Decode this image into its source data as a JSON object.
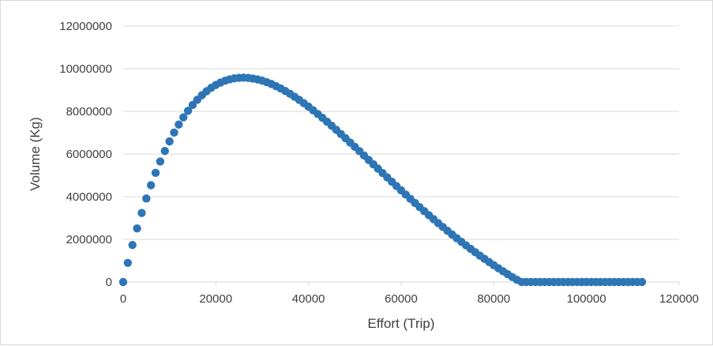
{
  "chart_data": {
    "type": "scatter",
    "title": "",
    "xlabel": "Effort (Trip)",
    "ylabel": "Volume (Kg)",
    "xlim": [
      0,
      120000
    ],
    "ylim": [
      0,
      12000000
    ],
    "x_ticks": [
      "0",
      "20000",
      "40000",
      "60000",
      "80000",
      "100000",
      "120000"
    ],
    "y_ticks": [
      "0",
      "2000000",
      "4000000",
      "6000000",
      "8000000",
      "10000000",
      "12000000"
    ],
    "grid": "horizontal",
    "legend": "none",
    "marker_color": "#2e75b6",
    "gridline_color": "#d9d9d9",
    "series": [
      {
        "x": [
          0,
          1000,
          2000,
          3000,
          4000,
          5000,
          6000,
          7000,
          8000,
          9000,
          10000,
          11000,
          12000,
          13000,
          14000,
          15000,
          16000,
          17000,
          18000,
          19000,
          20000,
          21000,
          22000,
          23000,
          24000,
          25000,
          26000,
          27000,
          28000,
          29000,
          30000,
          31000,
          32000,
          33000,
          34000,
          35000,
          36000,
          37000,
          38000,
          39000,
          40000,
          41000,
          42000,
          43000,
          44000,
          45000,
          46000,
          47000,
          48000,
          49000,
          50000,
          51000,
          52000,
          53000,
          54000,
          55000,
          56000,
          57000,
          58000,
          59000,
          60000,
          61000,
          62000,
          63000,
          64000,
          65000,
          66000,
          67000,
          68000,
          69000,
          70000,
          71000,
          72000,
          73000,
          74000,
          75000,
          76000,
          77000,
          78000,
          79000,
          80000,
          81000,
          82000,
          83000,
          84000,
          85000,
          86000,
          87000,
          88000,
          89000,
          90000,
          91000,
          92000,
          93000,
          94000,
          95000,
          96000,
          97000,
          98000,
          99000,
          100000,
          101000,
          102000,
          103000,
          104000,
          105000,
          106000,
          107000,
          108000,
          109000,
          110000,
          111000,
          112000
        ],
        "y": [
          0,
          896049,
          1732700,
          2512800,
          3239000,
          3913700,
          4539200,
          5118000,
          5652000,
          6143500,
          6594300,
          7006300,
          7381400,
          7721100,
          8027200,
          8301000,
          8544300,
          8758300,
          8944500,
          9104100,
          9238500,
          9348900,
          9436400,
          9502000,
          9547100,
          9572500,
          9579400,
          9568600,
          9541200,
          9497800,
          9439600,
          9367400,
          9282100,
          9184500,
          9075500,
          8955700,
          8825900,
          8687000,
          8539600,
          8384500,
          8222200,
          8053500,
          7879000,
          7699200,
          7514800,
          7326200,
          7134000,
          6938700,
          6740700,
          6540500,
          6338500,
          6135000,
          5930600,
          5725500,
          5520100,
          5314800,
          5109800,
          4905400,
          4701900,
          4499500,
          4298500,
          4099000,
          3901300,
          3705600,
          3511900,
          3320500,
          3131500,
          2945000,
          2761200,
          2580100,
          2401800,
          2226400,
          2054000,
          1884600,
          1718400,
          1555300,
          1395400,
          1238700,
          1085300,
          935200,
          788300,
          644700,
          504400,
          367400,
          233700,
          103300,
          0,
          0,
          0,
          0,
          0,
          0,
          0,
          0,
          0,
          0,
          0,
          0,
          0,
          0,
          0,
          0,
          0,
          0,
          0,
          0,
          0,
          0,
          0,
          0,
          0,
          0,
          0
        ]
      }
    ]
  }
}
